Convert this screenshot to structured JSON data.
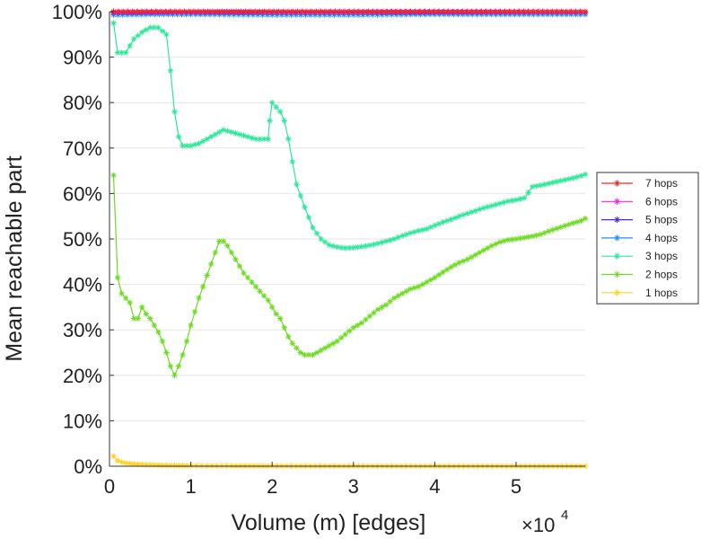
{
  "chart_data": {
    "type": "line",
    "xlabel": "Volume (m) [edges]",
    "ylabel": "Mean reachable part",
    "x_multiplier": {
      "base": "×10",
      "exponent": "4"
    },
    "xlim": [
      0,
      58500
    ],
    "ylim": [
      0,
      100
    ],
    "x_ticks": [
      {
        "value": 0,
        "label": "0"
      },
      {
        "value": 10000,
        "label": "1"
      },
      {
        "value": 20000,
        "label": "2"
      },
      {
        "value": 30000,
        "label": "3"
      },
      {
        "value": 40000,
        "label": "4"
      },
      {
        "value": 50000,
        "label": "5"
      }
    ],
    "y_ticks": [
      {
        "value": 0,
        "label": "0%"
      },
      {
        "value": 10,
        "label": "10%"
      },
      {
        "value": 20,
        "label": "20%"
      },
      {
        "value": 30,
        "label": "30%"
      },
      {
        "value": 40,
        "label": "40%"
      },
      {
        "value": 50,
        "label": "50%"
      },
      {
        "value": 60,
        "label": "60%"
      },
      {
        "value": 70,
        "label": "70%"
      },
      {
        "value": 80,
        "label": "80%"
      },
      {
        "value": 90,
        "label": "90%"
      },
      {
        "value": 100,
        "label": "100%"
      }
    ],
    "grid": "horizontal",
    "legend_position": "right",
    "series": [
      {
        "name": "7 hops",
        "color": "#ff2020",
        "points": [
          [
            500,
            100
          ],
          [
            58500,
            100
          ]
        ]
      },
      {
        "name": "6 hops",
        "color": "#ff22dd",
        "points": [
          [
            500,
            100
          ],
          [
            58500,
            100
          ]
        ]
      },
      {
        "name": "5 hops",
        "color": "#5522ee",
        "points": [
          [
            500,
            99.8
          ],
          [
            10000,
            99.9
          ],
          [
            20000,
            99.9
          ],
          [
            58500,
            99.9
          ]
        ]
      },
      {
        "name": "4 hops",
        "color": "#1f8fff",
        "points": [
          [
            500,
            99.3
          ],
          [
            5000,
            99.4
          ],
          [
            10000,
            99.4
          ],
          [
            20000,
            99.3
          ],
          [
            30000,
            99.3
          ],
          [
            40000,
            99.4
          ],
          [
            58500,
            99.4
          ]
        ]
      },
      {
        "name": "3 hops",
        "color": "#2ee89a",
        "points": [
          [
            500,
            97.5
          ],
          [
            1000,
            91
          ],
          [
            2000,
            91
          ],
          [
            3000,
            94
          ],
          [
            4000,
            95.5
          ],
          [
            5000,
            96.5
          ],
          [
            6000,
            96.5
          ],
          [
            7000,
            95
          ],
          [
            7500,
            87
          ],
          [
            8000,
            78
          ],
          [
            8500,
            72.5
          ],
          [
            9000,
            70.5
          ],
          [
            10000,
            70.5
          ],
          [
            11000,
            71
          ],
          [
            12000,
            72
          ],
          [
            13000,
            73
          ],
          [
            14000,
            74
          ],
          [
            15000,
            73.5
          ],
          [
            16000,
            73
          ],
          [
            17000,
            72.5
          ],
          [
            18000,
            72
          ],
          [
            19500,
            72
          ],
          [
            19700,
            76
          ],
          [
            20000,
            80
          ],
          [
            21000,
            78
          ],
          [
            21500,
            76
          ],
          [
            22000,
            72
          ],
          [
            23000,
            62
          ],
          [
            24000,
            57
          ],
          [
            25000,
            52.5
          ],
          [
            26000,
            50
          ],
          [
            27000,
            48.7
          ],
          [
            28000,
            48.2
          ],
          [
            29000,
            48
          ],
          [
            30000,
            48.1
          ],
          [
            31000,
            48.3
          ],
          [
            32000,
            48.6
          ],
          [
            33000,
            49
          ],
          [
            34000,
            49.5
          ],
          [
            35000,
            50
          ],
          [
            36000,
            50.7
          ],
          [
            37000,
            51.3
          ],
          [
            38000,
            51.8
          ],
          [
            39000,
            52.2
          ],
          [
            40000,
            53
          ],
          [
            41000,
            53.7
          ],
          [
            42000,
            54.3
          ],
          [
            43000,
            55
          ],
          [
            44000,
            55.6
          ],
          [
            45000,
            56.2
          ],
          [
            46000,
            56.8
          ],
          [
            47000,
            57.3
          ],
          [
            48000,
            57.8
          ],
          [
            49000,
            58.3
          ],
          [
            50000,
            58.6
          ],
          [
            51000,
            59
          ],
          [
            51500,
            60.2
          ],
          [
            52000,
            61.5
          ],
          [
            53000,
            61.8
          ],
          [
            54000,
            62.2
          ],
          [
            55000,
            62.6
          ],
          [
            56000,
            63
          ],
          [
            57000,
            63.4
          ],
          [
            58000,
            63.9
          ],
          [
            58500,
            64.2
          ]
        ]
      },
      {
        "name": "2 hops",
        "color": "#6ddc22",
        "points": [
          [
            500,
            64
          ],
          [
            1000,
            41.5
          ],
          [
            1500,
            38
          ],
          [
            2000,
            37
          ],
          [
            2500,
            36
          ],
          [
            3000,
            32.5
          ],
          [
            3500,
            32.5
          ],
          [
            4000,
            35
          ],
          [
            4500,
            33.5
          ],
          [
            5000,
            32.5
          ],
          [
            5500,
            31
          ],
          [
            6000,
            29.5
          ],
          [
            6500,
            27.5
          ],
          [
            7000,
            25
          ],
          [
            7500,
            22
          ],
          [
            8000,
            20
          ],
          [
            8500,
            22
          ],
          [
            9000,
            24.5
          ],
          [
            9500,
            27.5
          ],
          [
            10000,
            31
          ],
          [
            10500,
            34
          ],
          [
            11000,
            37
          ],
          [
            11500,
            39.5
          ],
          [
            12000,
            42
          ],
          [
            12500,
            44.5
          ],
          [
            13000,
            47
          ],
          [
            13500,
            49.5
          ],
          [
            14000,
            49.5
          ],
          [
            14500,
            48.5
          ],
          [
            15000,
            47
          ],
          [
            15500,
            45.5
          ],
          [
            16000,
            44
          ],
          [
            16500,
            42.5
          ],
          [
            17000,
            41.5
          ],
          [
            17500,
            40.5
          ],
          [
            18000,
            39.5
          ],
          [
            18500,
            38.5
          ],
          [
            19000,
            37.5
          ],
          [
            19500,
            36.5
          ],
          [
            20000,
            35
          ],
          [
            20500,
            33.5
          ],
          [
            21000,
            32.5
          ],
          [
            21500,
            30.5
          ],
          [
            22000,
            28.5
          ],
          [
            22500,
            27
          ],
          [
            23000,
            26
          ],
          [
            23500,
            25
          ],
          [
            24000,
            24.5
          ],
          [
            24500,
            24.5
          ],
          [
            25000,
            24.5
          ],
          [
            25500,
            25
          ],
          [
            26000,
            25.5
          ],
          [
            27000,
            26.5
          ],
          [
            28000,
            27.5
          ],
          [
            29000,
            29
          ],
          [
            30000,
            30.5
          ],
          [
            31000,
            31.5
          ],
          [
            32000,
            33
          ],
          [
            33000,
            34.5
          ],
          [
            34000,
            35.5
          ],
          [
            35000,
            37
          ],
          [
            36000,
            38
          ],
          [
            37000,
            39
          ],
          [
            38000,
            39.5
          ],
          [
            39000,
            40.5
          ],
          [
            40000,
            41.5
          ],
          [
            41000,
            42.7
          ],
          [
            42000,
            43.8
          ],
          [
            43000,
            44.8
          ],
          [
            44000,
            45.5
          ],
          [
            45000,
            46.5
          ],
          [
            46000,
            47.5
          ],
          [
            47000,
            48.5
          ],
          [
            48000,
            49.3
          ],
          [
            49000,
            49.8
          ],
          [
            50000,
            50
          ],
          [
            51000,
            50.3
          ],
          [
            52000,
            50.6
          ],
          [
            53000,
            51
          ],
          [
            54000,
            51.7
          ],
          [
            55000,
            52.3
          ],
          [
            56000,
            52.9
          ],
          [
            57000,
            53.5
          ],
          [
            58000,
            54
          ],
          [
            58500,
            54.5
          ]
        ]
      },
      {
        "name": "1 hops",
        "color": "#ffd21f",
        "points": [
          [
            500,
            2.2
          ],
          [
            1000,
            1.2
          ],
          [
            1500,
            0.9
          ],
          [
            2000,
            0.7
          ],
          [
            2500,
            0.6
          ],
          [
            3000,
            0.5
          ],
          [
            3500,
            0.45
          ],
          [
            4000,
            0.4
          ],
          [
            5000,
            0.3
          ],
          [
            6000,
            0.25
          ],
          [
            7000,
            0.2
          ],
          [
            8000,
            0.18
          ],
          [
            9000,
            0.15
          ],
          [
            10000,
            0.12
          ],
          [
            12000,
            0.1
          ],
          [
            15000,
            0.08
          ],
          [
            20000,
            0.06
          ],
          [
            30000,
            0.04
          ],
          [
            40000,
            0.03
          ],
          [
            50000,
            0.02
          ],
          [
            58500,
            0.02
          ]
        ]
      }
    ]
  }
}
